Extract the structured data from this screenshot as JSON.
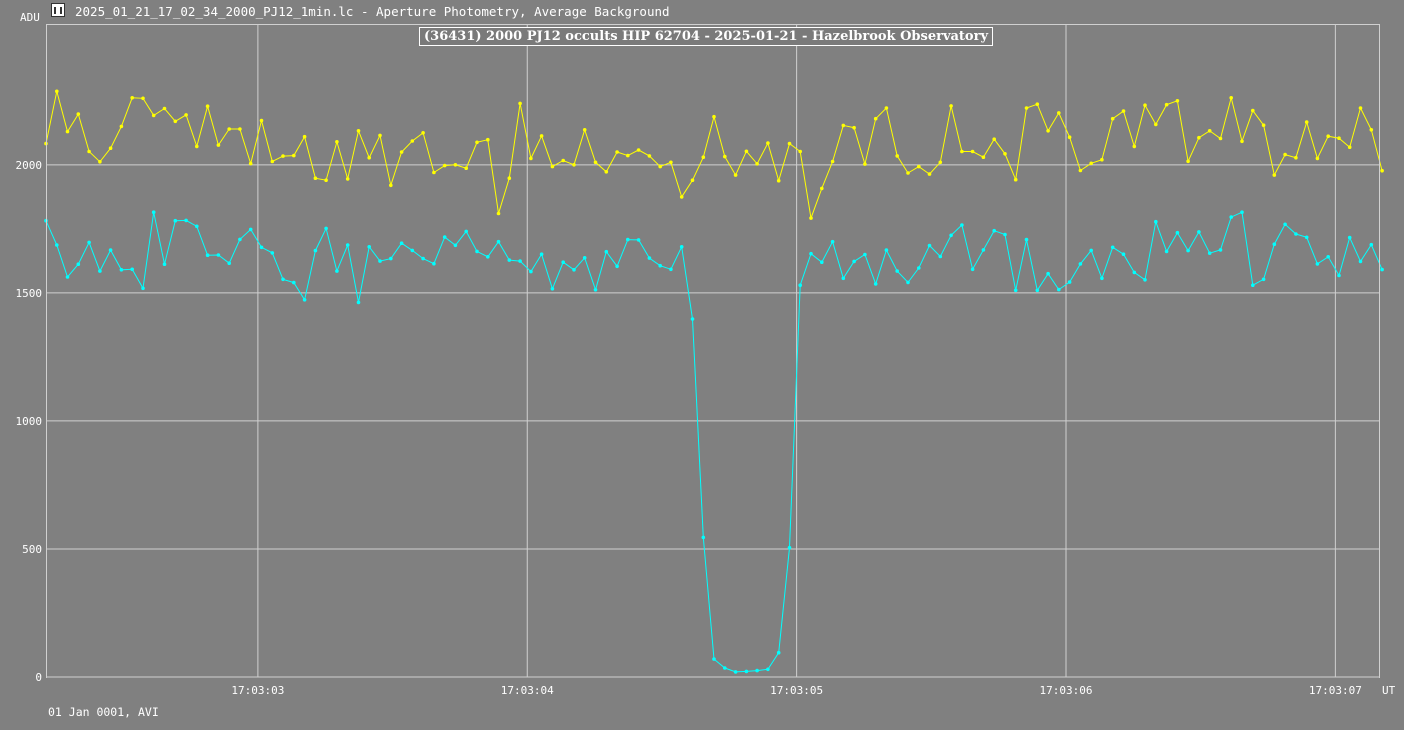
{
  "window": {
    "title": "2025_01_21_17_02_34_2000_PJ12_1min.lc - Aperture Photometry, Average Background",
    "icon": "lightcurve-app-icon"
  },
  "footer": {
    "date_label": "01 Jan 0001, AVI"
  },
  "colors": {
    "background": "#808080",
    "grid": "#d0d0d0",
    "target": "#00ffff",
    "comparison": "#ffff00"
  },
  "chart_data": {
    "type": "line",
    "title": "(36431) 2000 PJ12 occults HIP 62704 - 2025-01-21 - Hazelbrook Observatory",
    "ylabel": "ADU",
    "xlabel": "UT",
    "ylim": [
      0,
      2550
    ],
    "xlim": [
      -0.7866,
      4.1657
    ],
    "yticks": [
      0,
      500,
      1000,
      1500,
      2000
    ],
    "xticks": [
      {
        "value": 0,
        "label": "17:03:03"
      },
      {
        "value": 1,
        "label": "17:03:04"
      },
      {
        "value": 2,
        "label": "17:03:05"
      },
      {
        "value": 3,
        "label": "17:03:06"
      },
      {
        "value": 4,
        "label": "17:03:07"
      }
    ],
    "x_start": -0.7866,
    "x_step": 0.04,
    "grid": true,
    "legend": "none",
    "series": [
      {
        "color": "#ffff00",
        "values": [
          2083,
          2287,
          2130,
          2198,
          2052,
          2012,
          2065,
          2150,
          2262,
          2260,
          2193,
          2220,
          2170,
          2195,
          2072,
          2229,
          2077,
          2140,
          2140,
          2005,
          2173,
          2013,
          2034,
          2036,
          2110,
          1948,
          1940,
          2090,
          1945,
          2133,
          2028,
          2115,
          1920,
          2050,
          2093,
          2125,
          1970,
          1997,
          2000,
          1987,
          2088,
          2098,
          1810,
          1948,
          2240,
          2025,
          2113,
          1993,
          2017,
          2000,
          2137,
          2010,
          1973,
          2050,
          2036,
          2058,
          2035,
          1993,
          2010,
          1875,
          1940,
          2030,
          2188,
          2032,
          1960,
          2053,
          2004,
          2085,
          1938,
          2083,
          2052,
          1792,
          1908,
          2013,
          2154,
          2145,
          2003,
          2180,
          2222,
          2035,
          1968,
          1993,
          1964,
          2010,
          2230,
          2052,
          2052,
          2030,
          2100,
          2043,
          1942,
          2222,
          2237,
          2133,
          2203,
          2108,
          1978,
          2006,
          2020,
          2180,
          2210,
          2072,
          2233,
          2158,
          2235,
          2250,
          2014,
          2106,
          2133,
          2103,
          2262,
          2092,
          2212,
          2155,
          1960,
          2040,
          2028,
          2167,
          2025,
          2112,
          2104,
          2069,
          2222,
          2137,
          1977
        ]
      },
      {
        "color": "#00ffff",
        "values": [
          1782,
          1687,
          1562,
          1612,
          1697,
          1585,
          1667,
          1590,
          1592,
          1518,
          1815,
          1612,
          1782,
          1783,
          1760,
          1647,
          1648,
          1616,
          1709,
          1748,
          1678,
          1656,
          1553,
          1540,
          1473,
          1665,
          1752,
          1585,
          1687,
          1463,
          1680,
          1624,
          1634,
          1694,
          1666,
          1634,
          1614,
          1718,
          1686,
          1740,
          1662,
          1641,
          1700,
          1628,
          1624,
          1583,
          1651,
          1516,
          1620,
          1590,
          1637,
          1512,
          1661,
          1604,
          1708,
          1707,
          1636,
          1606,
          1592,
          1680,
          1398,
          545,
          70,
          35,
          20,
          22,
          25,
          30,
          95,
          505,
          1530,
          1653,
          1620,
          1700,
          1557,
          1623,
          1650,
          1535,
          1667,
          1585,
          1541,
          1597,
          1685,
          1642,
          1725,
          1765,
          1592,
          1668,
          1743,
          1728,
          1510,
          1708,
          1510,
          1575,
          1513,
          1542,
          1613,
          1666,
          1557,
          1678,
          1651,
          1580,
          1551,
          1778,
          1662,
          1735,
          1665,
          1738,
          1655,
          1668,
          1796,
          1815,
          1530,
          1553,
          1690,
          1768,
          1730,
          1717,
          1613,
          1641,
          1568,
          1716,
          1623,
          1688,
          1591
        ]
      }
    ]
  }
}
